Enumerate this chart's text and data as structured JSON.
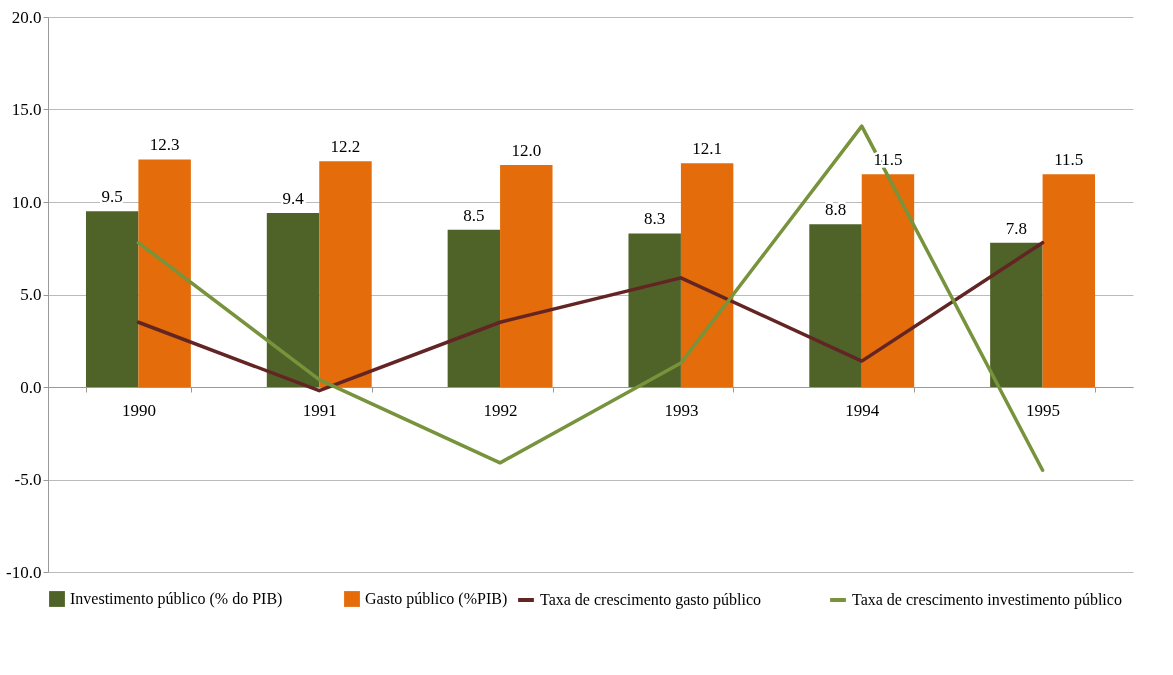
{
  "chart_data": {
    "type": "bar",
    "categories": [
      "1990",
      "1991",
      "1992",
      "1993",
      "1994",
      "1995"
    ],
    "ylim": [
      -10,
      20
    ],
    "yticks": [
      {
        "value": -10,
        "label": "-10.0"
      },
      {
        "value": -5,
        "label": "-5.0"
      },
      {
        "value": 0,
        "label": "0.0"
      },
      {
        "value": 5,
        "label": "5.0"
      },
      {
        "value": 10,
        "label": "10.0"
      },
      {
        "value": 15,
        "label": "15.0"
      },
      {
        "value": 20,
        "label": "20.0"
      }
    ],
    "grid": "y",
    "legend": "bottom",
    "line_style": "solid",
    "series": [
      {
        "name": "Investimento público (% do PIB)",
        "color": "#4f6228",
        "values": [
          9.5,
          9.4,
          8.5,
          8.3,
          8.8,
          7.8
        ],
        "value_labels": [
          "9.5",
          "9.4",
          "8.5",
          "8.3",
          "8.8",
          "7.8"
        ]
      },
      {
        "name": "Gasto público (%PIB)",
        "color": "#e46c0a",
        "values": [
          12.3,
          12.2,
          12.0,
          12.1,
          11.5,
          11.5
        ],
        "value_labels": [
          "12.3",
          "12.2",
          "12.0",
          "12.1",
          "11.5",
          "11.5"
        ]
      },
      {
        "name": "Taxa de crescimento gasto público",
        "type": "line",
        "color": "#632523",
        "values": [
          3.5,
          -0.2,
          3.5,
          5.9,
          1.4,
          7.8
        ]
      },
      {
        "name": "Taxa de crescimento investimento público",
        "type": "line",
        "color": "#77933c",
        "values": [
          7.8,
          0.4,
          -4.1,
          1.3,
          14.1,
          -4.5
        ]
      }
    ]
  }
}
